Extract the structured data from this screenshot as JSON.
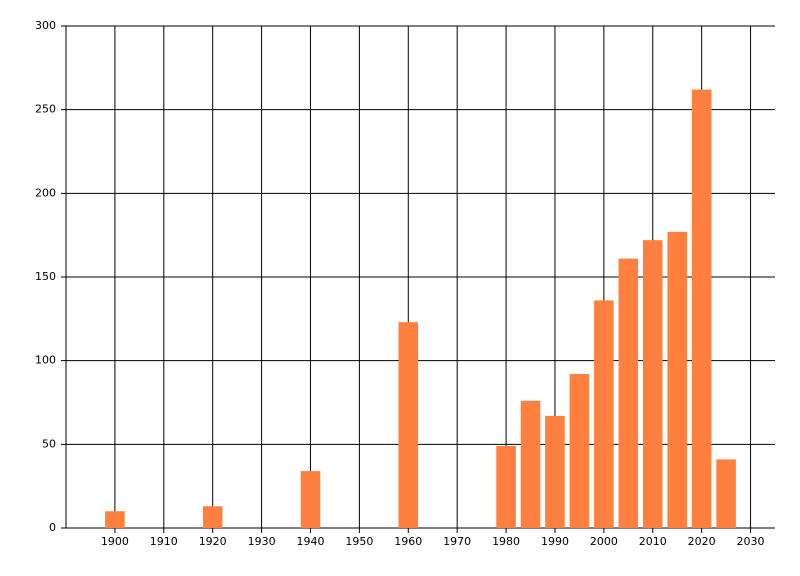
{
  "chart_data": {
    "type": "bar",
    "x": [
      1900,
      1920,
      1940,
      1960,
      1980,
      1985,
      1990,
      1995,
      2000,
      2005,
      2010,
      2015,
      2020,
      2025
    ],
    "values": [
      10,
      13,
      34,
      123,
      49,
      76,
      67,
      92,
      136,
      161,
      172,
      177,
      262,
      41
    ],
    "color": "#ff7f3f",
    "xlim": [
      1890,
      2035
    ],
    "ylim": [
      0,
      300
    ],
    "xticks": [
      1900,
      1910,
      1920,
      1930,
      1940,
      1950,
      1960,
      1970,
      1980,
      1990,
      2000,
      2010,
      2020,
      2030
    ],
    "yticks": [
      0,
      50,
      100,
      150,
      200,
      250,
      300
    ],
    "grid": true
  }
}
